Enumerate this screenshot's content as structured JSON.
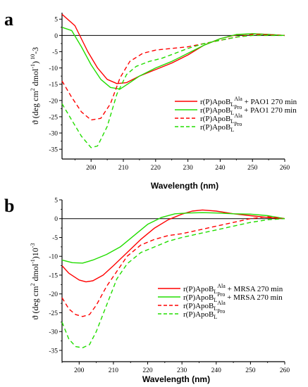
{
  "colors": {
    "red": "#ff0000",
    "green": "#22dd00",
    "axis": "#000000"
  },
  "chart_data": [
    {
      "type": "line",
      "panel_label": "a",
      "xlabel": "Wavelength (nm)",
      "ylabel_parts": [
        "ϑ (deg cm",
        "2",
        " dmol",
        "-1",
        ")",
        " 10",
        "-3"
      ],
      "xlim": [
        191,
        260
      ],
      "ylim": [
        -38,
        7
      ],
      "xticks": [
        200,
        210,
        220,
        230,
        240,
        250,
        260
      ],
      "yticks": [
        5,
        0,
        -5,
        -10,
        -15,
        -20,
        -25,
        -30,
        -35
      ],
      "zero_line": true,
      "legend": [
        {
          "base": "r(P)ApoB",
          "sub": "L",
          "sup": "Ala",
          "suffix": " + PAO1 270 min",
          "color": "red",
          "dash": false
        },
        {
          "base": "r(P)ApoB",
          "sub": "L",
          "sup": "Pro",
          "suffix": " + PAO1 270 min",
          "color": "green",
          "dash": false
        },
        {
          "base": "r(P)ApoB",
          "sub": "L",
          "sup": "Ala",
          "suffix": "",
          "color": "red",
          "dash": true
        },
        {
          "base": "r(P)ApoB",
          "sub": "L",
          "sup": "Pro",
          "suffix": "",
          "color": "green",
          "dash": true
        }
      ],
      "series": [
        {
          "color": "red",
          "dash": false,
          "x": [
            191,
            195,
            199,
            202,
            205,
            208,
            211,
            215,
            220,
            225,
            230,
            235,
            240,
            245,
            250,
            255,
            260
          ],
          "y": [
            6.5,
            3,
            -5,
            -10,
            -13.5,
            -14.8,
            -14.5,
            -12.5,
            -10.5,
            -8.5,
            -6,
            -3,
            -1,
            0.2,
            0.5,
            0.3,
            0
          ]
        },
        {
          "color": "green",
          "dash": false,
          "x": [
            191,
            194,
            197,
            200,
            203,
            206,
            209,
            212,
            215,
            220,
            225,
            230,
            235,
            240,
            245,
            250,
            255,
            260
          ],
          "y": [
            2.5,
            1.5,
            -3.5,
            -9,
            -13.5,
            -16,
            -16.5,
            -14.5,
            -12.5,
            -10,
            -8,
            -5.5,
            -3,
            -1,
            0.3,
            0.5,
            0.3,
            0
          ]
        },
        {
          "color": "red",
          "dash": true,
          "x": [
            191,
            194,
            197,
            200,
            203,
            206,
            209,
            212,
            216,
            220,
            225,
            230,
            235,
            240,
            245,
            250,
            255,
            260
          ],
          "y": [
            -14,
            -19,
            -23.5,
            -26,
            -25.5,
            -21,
            -13,
            -8,
            -5.5,
            -4.5,
            -4,
            -3.5,
            -2.5,
            -1.5,
            -0.5,
            0.3,
            0.2,
            0
          ]
        },
        {
          "color": "green",
          "dash": true,
          "x": [
            191,
            194,
            197,
            200,
            202,
            205,
            208,
            211,
            214,
            218,
            222,
            226,
            230,
            235,
            240,
            245,
            250,
            255,
            260
          ],
          "y": [
            -21,
            -26,
            -31,
            -34.5,
            -34,
            -28,
            -18,
            -12,
            -9.5,
            -8,
            -7,
            -5.5,
            -4,
            -2.5,
            -1.5,
            -0.5,
            0,
            0,
            0
          ]
        }
      ]
    },
    {
      "type": "line",
      "panel_label": "b",
      "xlabel": "Wavelength (nm)",
      "ylabel_parts": [
        "ϑ (deg cm",
        "2",
        " dmol",
        "-1",
        ")10",
        "-3",
        ""
      ],
      "xlim": [
        195,
        260
      ],
      "ylim": [
        -38,
        5
      ],
      "xticks": [
        200,
        210,
        220,
        230,
        240,
        250,
        260
      ],
      "yticks": [
        5,
        0,
        -5,
        -10,
        -15,
        -20,
        -25,
        -30,
        -35
      ],
      "zero_line": true,
      "legend": [
        {
          "base": "r(P)ApoB",
          "sub": "L",
          "sup": "Ala",
          "suffix": " + MRSA 270 min",
          "color": "red",
          "dash": false
        },
        {
          "base": "r(P)ApoB",
          "sub": "L",
          "sup": "Pro",
          "suffix": " + MRSA 270 min",
          "color": "green",
          "dash": false
        },
        {
          "base": "r(P)ApoB",
          "sub": "L",
          "sup": "Ala",
          "suffix": "",
          "color": "red",
          "dash": true
        },
        {
          "base": "r(P)ApoB",
          "sub": "L",
          "sup": "Pro",
          "suffix": "",
          "color": "green",
          "dash": true
        }
      ],
      "series": [
        {
          "color": "red",
          "dash": false,
          "x": [
            195,
            197,
            200,
            202,
            204,
            207,
            210,
            214,
            218,
            222,
            226,
            230,
            233,
            236,
            240,
            245,
            250,
            255,
            260
          ],
          "y": [
            -12.5,
            -14.5,
            -16.3,
            -16.8,
            -16.5,
            -15,
            -12.5,
            -9,
            -5.5,
            -2.5,
            -0.3,
            1.2,
            2,
            2.3,
            2,
            1.3,
            0.8,
            0.3,
            0
          ]
        },
        {
          "color": "green",
          "dash": false,
          "x": [
            195,
            198,
            201,
            204,
            208,
            212,
            216,
            220,
            224,
            228,
            232,
            236,
            240,
            245,
            250,
            255,
            260
          ],
          "y": [
            -11,
            -11.7,
            -11.8,
            -11,
            -9.5,
            -7.5,
            -4.5,
            -1.5,
            0.3,
            1.3,
            1.5,
            1.6,
            1.5,
            1.3,
            1.2,
            0.8,
            0
          ]
        },
        {
          "color": "red",
          "dash": true,
          "x": [
            195,
            197,
            199,
            201,
            203,
            205,
            208,
            211,
            214,
            218,
            222,
            226,
            230,
            235,
            240,
            245,
            250,
            255,
            260
          ],
          "y": [
            -21,
            -24,
            -25.5,
            -26,
            -25.5,
            -23,
            -18,
            -14,
            -10,
            -7,
            -5.5,
            -4.5,
            -4,
            -3,
            -2,
            -1,
            0,
            0.5,
            0
          ]
        },
        {
          "color": "green",
          "dash": true,
          "x": [
            195,
            197,
            199,
            201,
            203,
            205,
            208,
            211,
            214,
            218,
            222,
            226,
            230,
            235,
            240,
            245,
            250,
            255,
            260
          ],
          "y": [
            -27.5,
            -32,
            -34,
            -34.3,
            -33.5,
            -30,
            -23,
            -16,
            -12,
            -9,
            -7.5,
            -6,
            -5,
            -4,
            -3,
            -2,
            -1,
            -0.3,
            0
          ]
        }
      ]
    }
  ]
}
